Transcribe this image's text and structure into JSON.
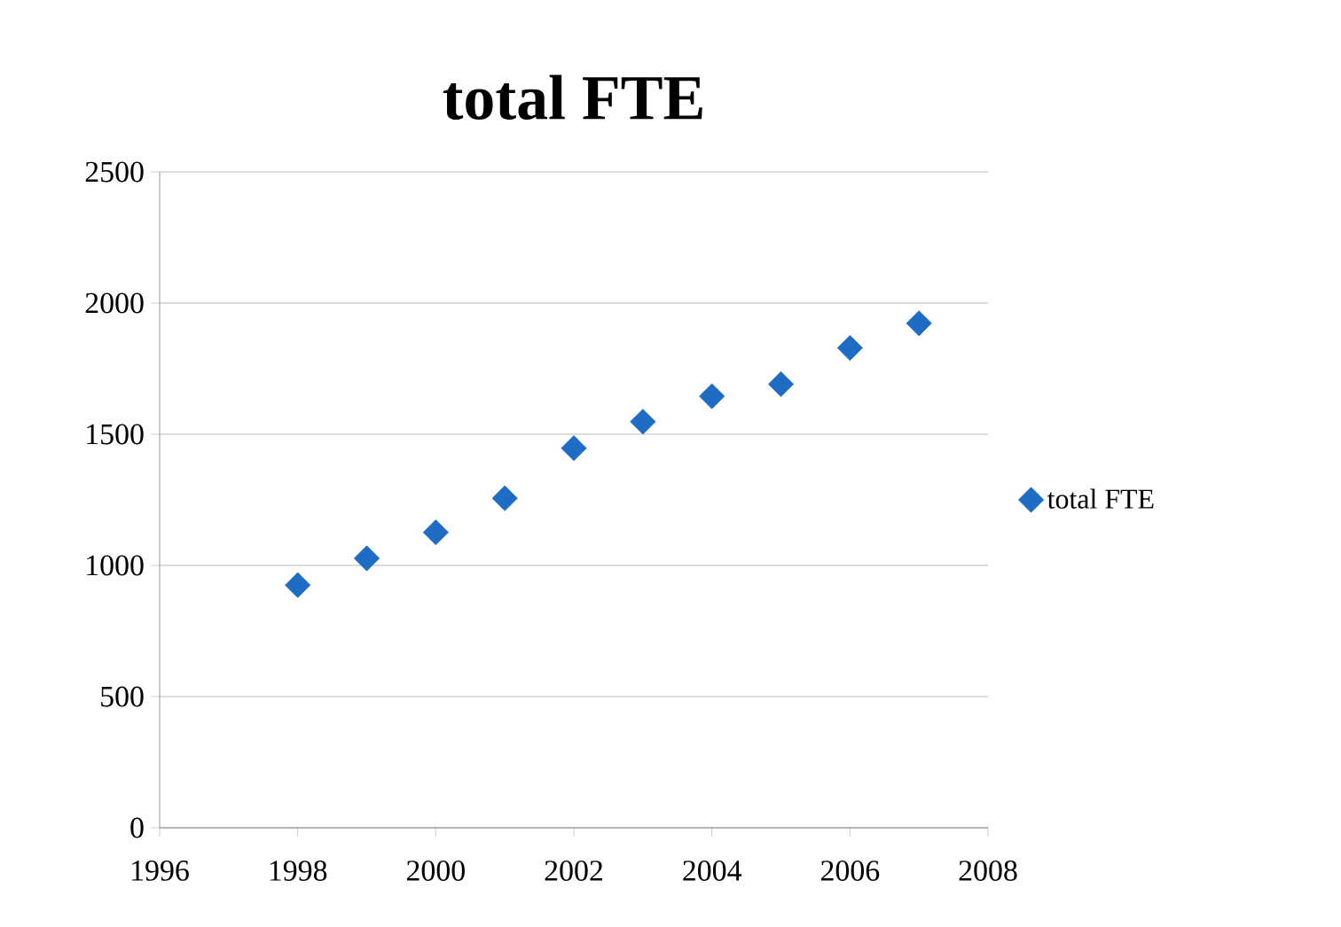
{
  "chart_data": {
    "type": "scatter",
    "title": "total FTE",
    "x": [
      1998,
      1999,
      2000,
      2001,
      2002,
      2003,
      2004,
      2005,
      2006,
      2007
    ],
    "series": [
      {
        "name": "total FTE",
        "color": "#1f6cc4",
        "values": [
          925,
          1027,
          1126,
          1256,
          1447,
          1548,
          1645,
          1691,
          1829,
          1923
        ]
      }
    ],
    "xlim": [
      1996,
      2008
    ],
    "xticks": [
      1996,
      1998,
      2000,
      2002,
      2004,
      2006,
      2008
    ],
    "ylim": [
      0,
      2500
    ],
    "yticks": [
      0,
      500,
      1000,
      1500,
      2000,
      2500
    ],
    "grid": "y",
    "legend": "right",
    "marker": "diamond"
  }
}
